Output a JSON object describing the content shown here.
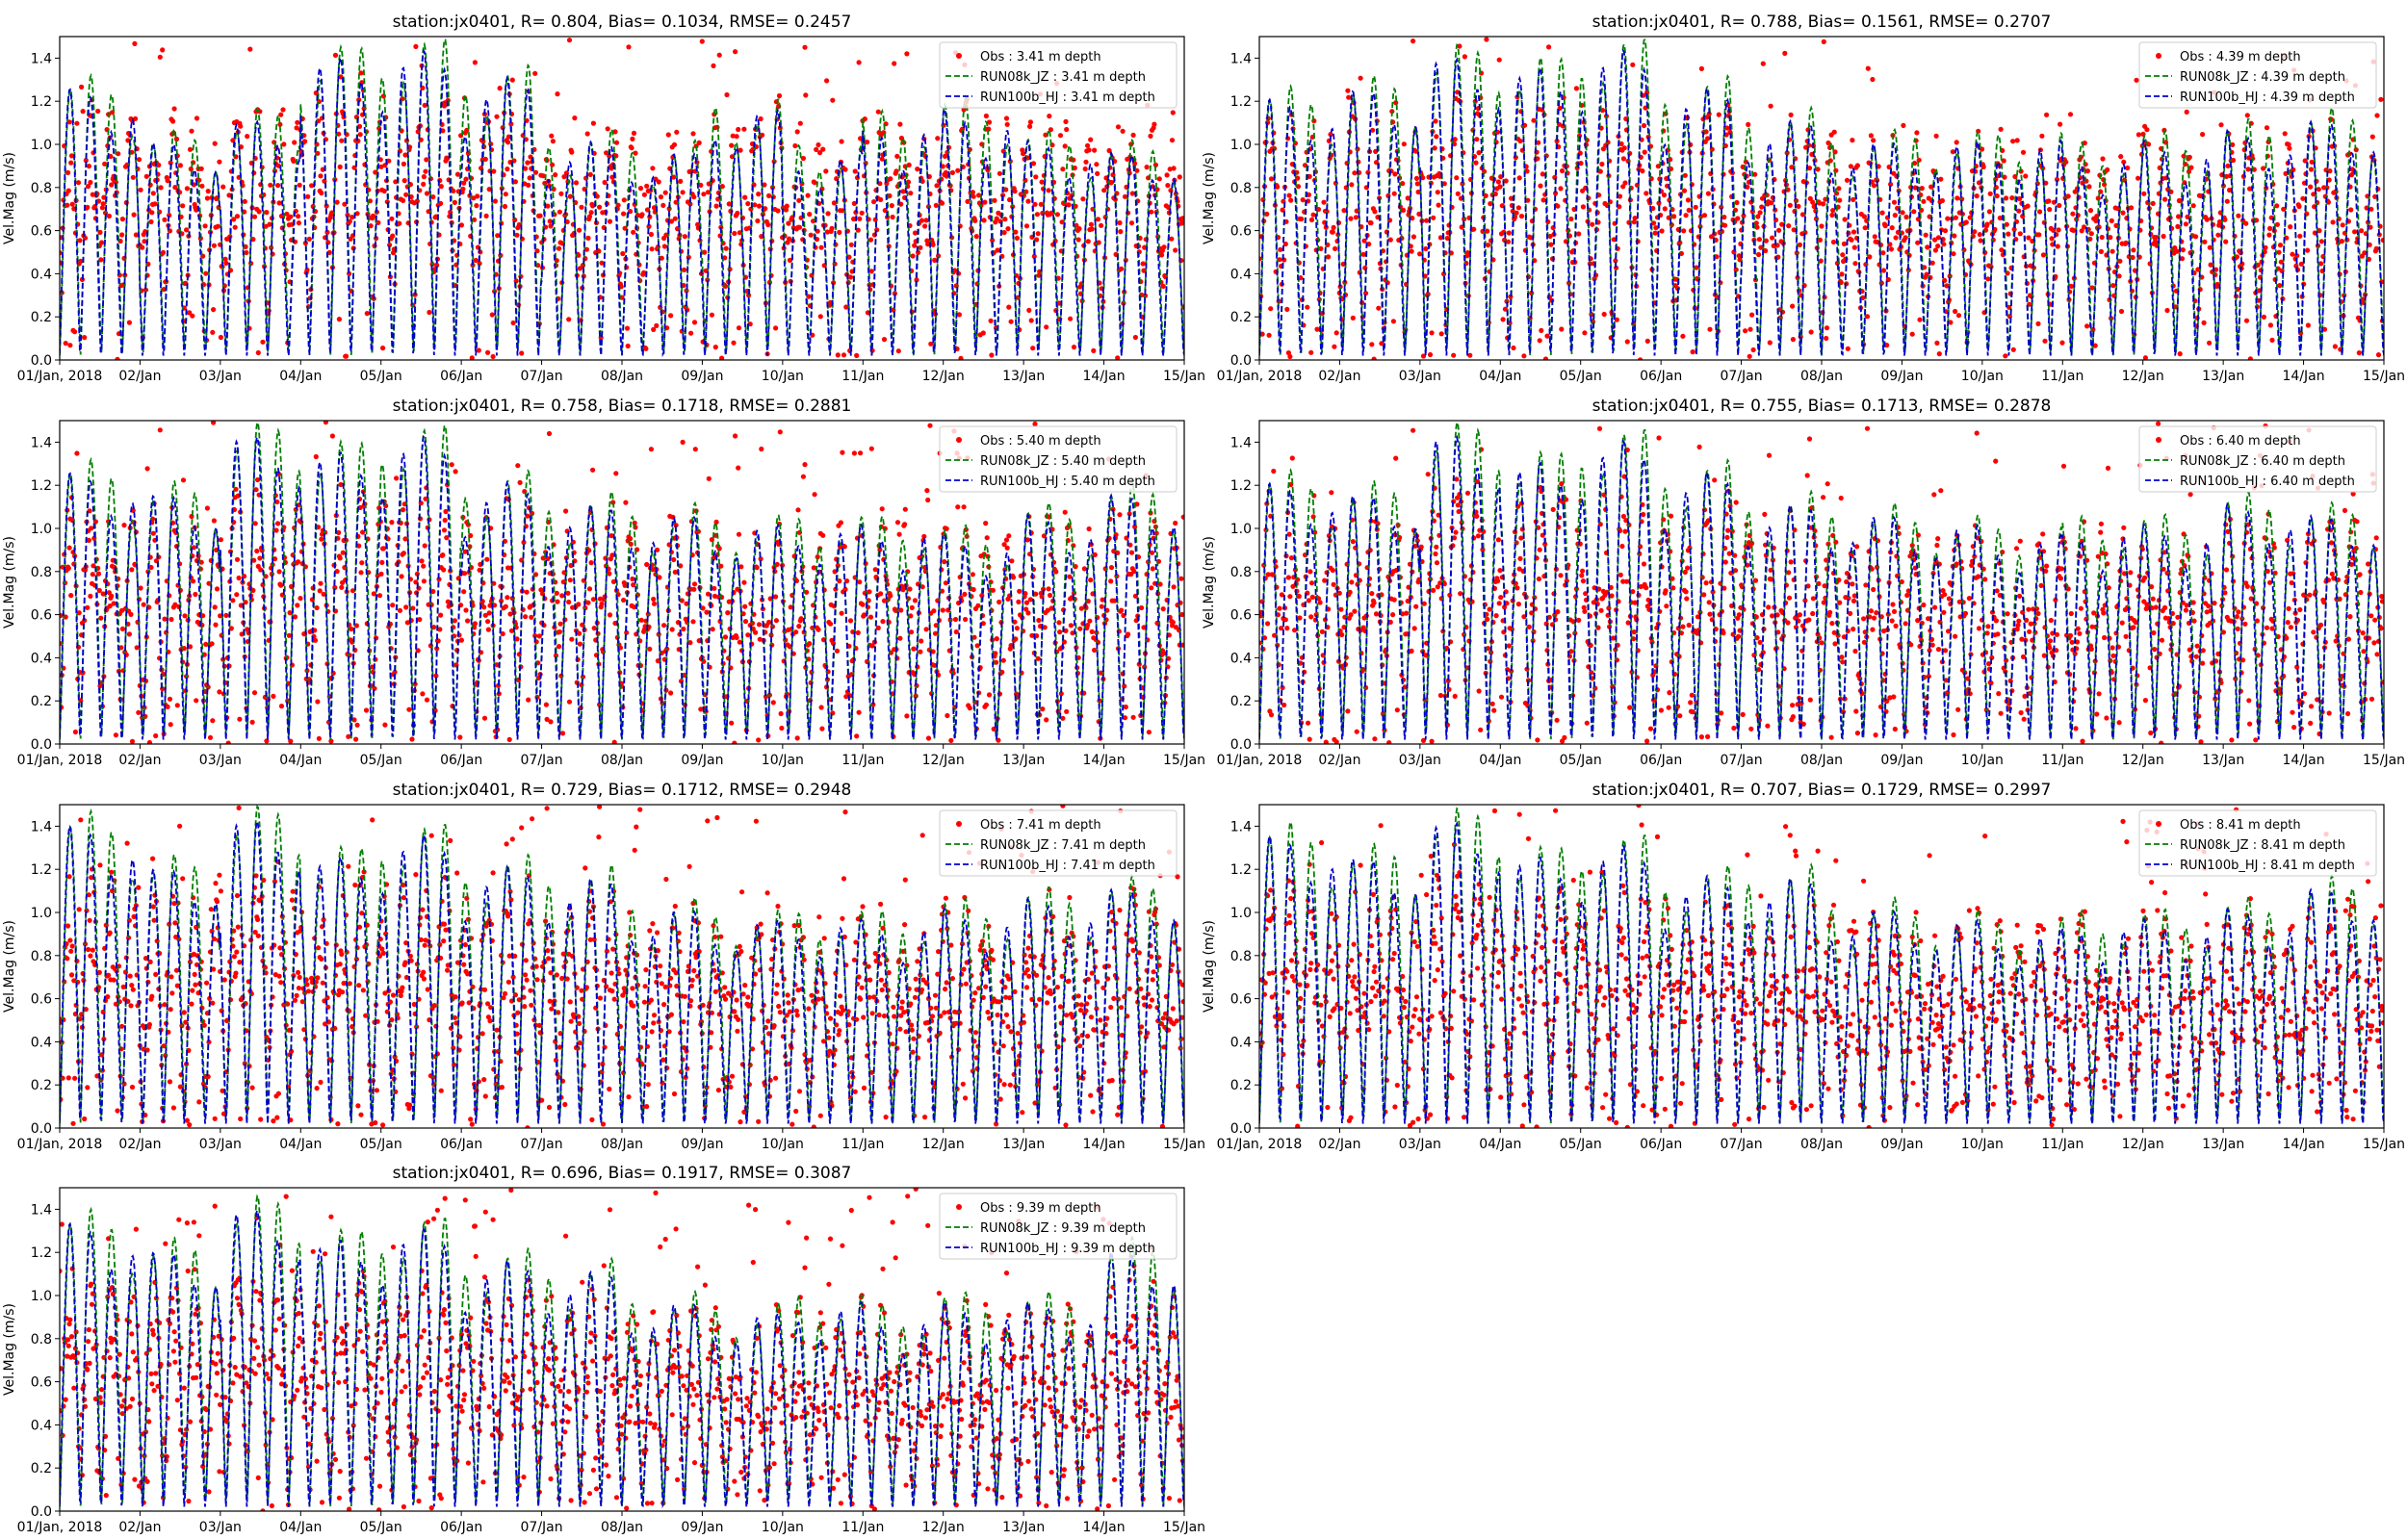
{
  "figure": {
    "ylabel": "Vel.Mag (m/s)",
    "yticks": [
      "0.0",
      "0.2",
      "0.4",
      "0.6",
      "0.8",
      "1.0",
      "1.2",
      "1.4"
    ],
    "xticks": [
      "01/Jan, 2018",
      "02/Jan",
      "03/Jan",
      "04/Jan",
      "05/Jan",
      "06/Jan",
      "07/Jan",
      "08/Jan",
      "09/Jan",
      "10/Jan",
      "11/Jan",
      "12/Jan",
      "13/Jan",
      "14/Jan",
      "15/Jan"
    ],
    "colors": {
      "obs": "#ff0000",
      "jz": "#008000",
      "hj": "#0000cc",
      "axis": "#000000"
    }
  },
  "chart_data": [
    {
      "type": "line",
      "title": "station:jx0401, R= 0.804, Bias= 0.1034, RMSE= 0.2457",
      "xlabel": "",
      "ylabel": "Vel.Mag (m/s)",
      "xlim": [
        0,
        14
      ],
      "ylim": [
        0,
        1.5
      ],
      "legend_position": "top-right",
      "series": [
        {
          "name": "Obs : 3.41 m depth",
          "style": "markers",
          "color": "#ff0000"
        },
        {
          "name": "RUN08k_JZ : 3.41 m depth",
          "style": "dashed",
          "color": "#008000"
        },
        {
          "name": "RUN100b_HJ : 3.41 m depth",
          "style": "dashed",
          "color": "#0000cc"
        }
      ],
      "obs_level": 0.7,
      "model_peaks": [
        1.3,
        1.05,
        1.15,
        1.45,
        1.48,
        1.35,
        1.05,
        1.0,
        1.2,
        1.0,
        1.15,
        1.2,
        1.05,
        1.0
      ]
    },
    {
      "type": "line",
      "title": "station:jx0401, R= 0.788, Bias= 0.1561, RMSE= 0.2707",
      "xlabel": "",
      "ylabel": "Vel.Mag (m/s)",
      "xlim": [
        0,
        14
      ],
      "ylim": [
        0,
        1.5
      ],
      "legend_position": "top-right",
      "series": [
        {
          "name": "Obs : 4.39 m depth",
          "style": "markers",
          "color": "#ff0000"
        },
        {
          "name": "RUN08k_JZ : 4.39 m depth",
          "style": "dashed",
          "color": "#008000"
        },
        {
          "name": "RUN100b_HJ : 4.39 m depth",
          "style": "dashed",
          "color": "#0000cc"
        }
      ],
      "obs_level": 0.62,
      "model_peaks": [
        1.25,
        1.3,
        1.45,
        1.4,
        1.48,
        1.3,
        1.15,
        1.05,
        1.05,
        1.05,
        1.0,
        1.05,
        1.1,
        1.15
      ]
    },
    {
      "type": "line",
      "title": "station:jx0401, R= 0.758, Bias= 0.1718, RMSE= 0.2881",
      "xlabel": "",
      "ylabel": "Vel.Mag (m/s)",
      "xlim": [
        0,
        14
      ],
      "ylim": [
        0,
        1.5
      ],
      "legend_position": "top-right",
      "series": [
        {
          "name": "Obs : 5.40 m depth",
          "style": "markers",
          "color": "#ff0000"
        },
        {
          "name": "RUN08k_JZ : 5.40 m depth",
          "style": "dashed",
          "color": "#008000"
        },
        {
          "name": "RUN100b_HJ : 5.40 m depth",
          "style": "dashed",
          "color": "#0000cc"
        }
      ],
      "obs_level": 0.58,
      "model_peaks": [
        1.3,
        1.2,
        1.48,
        1.4,
        1.47,
        1.25,
        1.15,
        1.1,
        1.05,
        1.05,
        1.05,
        1.0,
        1.1,
        1.2
      ]
    },
    {
      "type": "line",
      "title": "station:jx0401, R= 0.755, Bias= 0.1713, RMSE= 0.2878",
      "xlabel": "",
      "ylabel": "Vel.Mag (m/s)",
      "xlim": [
        0,
        14
      ],
      "ylim": [
        0,
        1.5
      ],
      "legend_position": "top-right",
      "series": [
        {
          "name": "Obs : 6.40 m depth",
          "style": "markers",
          "color": "#ff0000"
        },
        {
          "name": "RUN08k_JZ : 6.40 m depth",
          "style": "dashed",
          "color": "#008000"
        },
        {
          "name": "RUN100b_HJ : 6.40 m depth",
          "style": "dashed",
          "color": "#0000cc"
        }
      ],
      "obs_level": 0.55,
      "model_peaks": [
        1.25,
        1.2,
        1.48,
        1.35,
        1.45,
        1.3,
        1.15,
        1.1,
        1.05,
        1.0,
        1.05,
        1.05,
        1.15,
        1.1
      ]
    },
    {
      "type": "line",
      "title": "station:jx0401, R= 0.729, Bias= 0.1712, RMSE= 0.2948",
      "xlabel": "",
      "ylabel": "Vel.Mag (m/s)",
      "xlim": [
        0,
        14
      ],
      "ylim": [
        0,
        1.5
      ],
      "legend_position": "top-right",
      "series": [
        {
          "name": "Obs : 7.41 m depth",
          "style": "markers",
          "color": "#ff0000"
        },
        {
          "name": "RUN08k_JZ : 7.41 m depth",
          "style": "dashed",
          "color": "#008000"
        },
        {
          "name": "RUN100b_HJ : 7.41 m depth",
          "style": "dashed",
          "color": "#0000cc"
        }
      ],
      "obs_level": 0.55,
      "model_peaks": [
        1.45,
        1.25,
        1.48,
        1.3,
        1.4,
        1.25,
        1.2,
        1.05,
        1.0,
        1.0,
        1.0,
        1.05,
        1.1,
        1.15
      ]
    },
    {
      "type": "line",
      "title": "station:jx0401, R= 0.707, Bias= 0.1729, RMSE= 0.2997",
      "xlabel": "",
      "ylabel": "Vel.Mag (m/s)",
      "xlim": [
        0,
        14
      ],
      "ylim": [
        0,
        1.5
      ],
      "legend_position": "top-right",
      "series": [
        {
          "name": "Obs : 8.41 m depth",
          "style": "markers",
          "color": "#ff0000"
        },
        {
          "name": "RUN08k_JZ : 8.41 m depth",
          "style": "dashed",
          "color": "#008000"
        },
        {
          "name": "RUN100b_HJ : 8.41 m depth",
          "style": "dashed",
          "color": "#0000cc"
        }
      ],
      "obs_level": 0.52,
      "model_peaks": [
        1.4,
        1.3,
        1.47,
        1.3,
        1.35,
        1.2,
        1.2,
        1.05,
        1.0,
        0.95,
        1.0,
        1.0,
        1.05,
        1.15
      ]
    },
    {
      "type": "line",
      "title": "station:jx0401, R= 0.696, Bias= 0.1917, RMSE= 0.3087",
      "xlabel": "",
      "ylabel": "Vel.Mag (m/s)",
      "xlim": [
        0,
        14
      ],
      "ylim": [
        0,
        1.5
      ],
      "legend_position": "top-right",
      "series": [
        {
          "name": "Obs : 9.39 m depth",
          "style": "markers",
          "color": "#ff0000"
        },
        {
          "name": "RUN08k_JZ : 9.39 m depth",
          "style": "dashed",
          "color": "#008000"
        },
        {
          "name": "RUN100b_HJ : 9.39 m depth",
          "style": "dashed",
          "color": "#0000cc"
        }
      ],
      "obs_level": 0.48,
      "model_peaks": [
        1.38,
        1.25,
        1.45,
        1.3,
        1.35,
        1.2,
        1.15,
        1.0,
        0.95,
        1.0,
        0.95,
        1.0,
        1.0,
        1.25
      ]
    }
  ]
}
